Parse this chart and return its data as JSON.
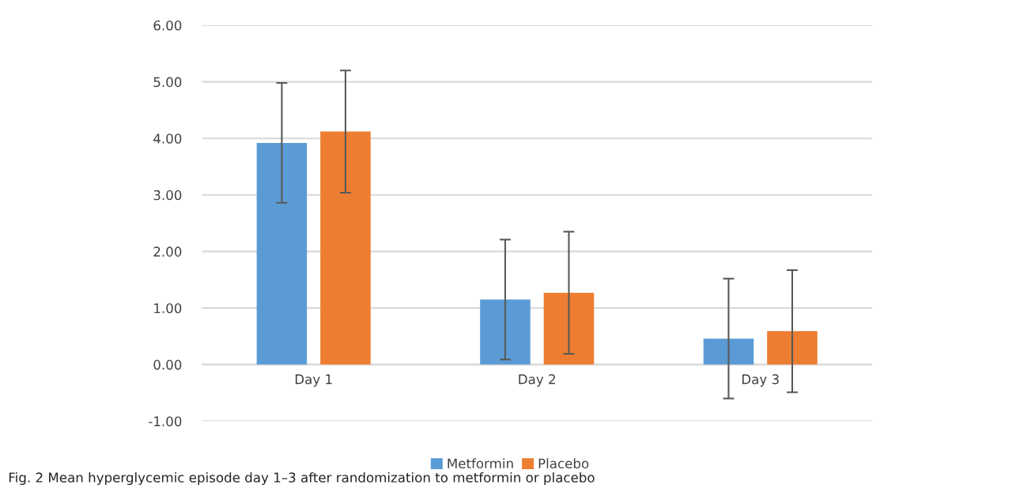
{
  "chart_data": {
    "type": "bar",
    "categories": [
      "Day 1",
      "Day 2",
      "Day 3"
    ],
    "series": [
      {
        "name": "Metformin",
        "color": "#5b9bd5",
        "values": [
          3.92,
          1.15,
          0.46
        ],
        "errors": [
          1.06,
          1.06,
          1.06
        ]
      },
      {
        "name": "Placebo",
        "color": "#ed7d31",
        "values": [
          4.12,
          1.27,
          0.59
        ],
        "errors": [
          1.08,
          1.08,
          1.08
        ]
      }
    ],
    "ylim": [
      -1,
      6
    ],
    "yticks": [
      {
        "value": -1,
        "label": "-1.00"
      },
      {
        "value": 0,
        "label": "0.00"
      },
      {
        "value": 1,
        "label": "1.00"
      },
      {
        "value": 2,
        "label": "2.00"
      },
      {
        "value": 3,
        "label": "3.00"
      },
      {
        "value": 4,
        "label": "4.00"
      },
      {
        "value": 5,
        "label": "5.00"
      },
      {
        "value": 6,
        "label": "6.00"
      }
    ],
    "grid": "y",
    "legend": "bottom",
    "annotations": [
      "Fig. 2 Mean hyperglycemic episode day 1–3 after randomization to metformin or placebo"
    ]
  }
}
